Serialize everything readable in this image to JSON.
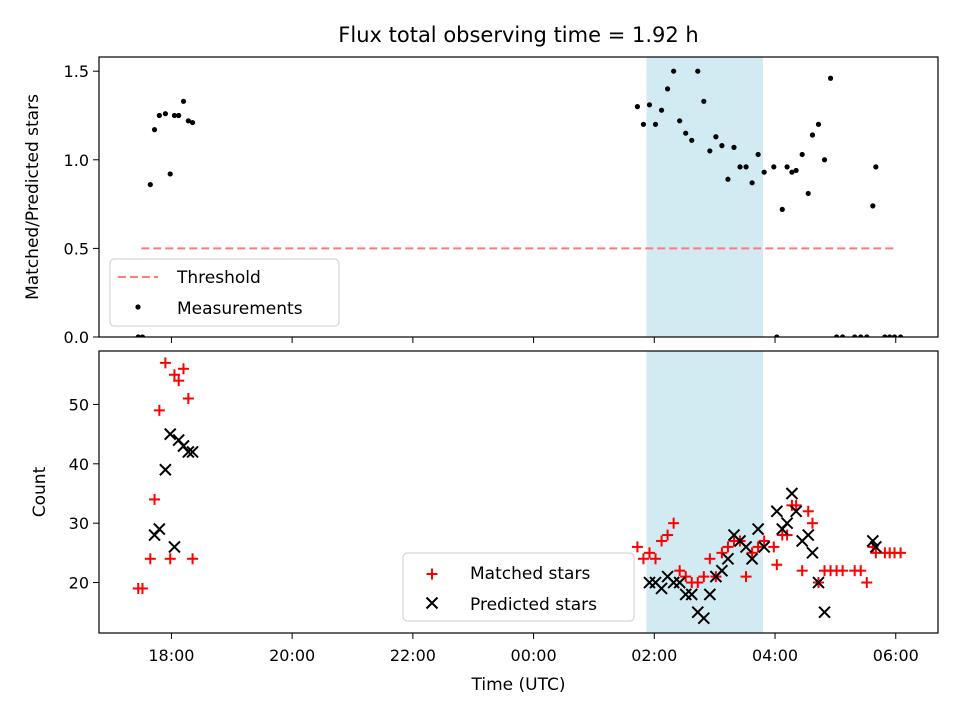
{
  "chart_data": {
    "title": "Flux total observing time = 1.92 h",
    "xlabel": "Time (UTC)",
    "x_unit": "hours since 00:00 UTC",
    "x_range": [
      -7.2,
      6.7
    ],
    "x_tick_values": [
      -6,
      -4,
      -2,
      0,
      2,
      4,
      6
    ],
    "x_tick_labels": [
      "18:00",
      "20:00",
      "22:00",
      "00:00",
      "02:00",
      "04:00",
      "06:00"
    ],
    "highlight": {
      "x_start": 1.87,
      "x_end": 3.8,
      "color": "#add8e6"
    },
    "panels": [
      {
        "type": "scatter",
        "ylabel": "Matched/Predicted stars",
        "ylim": [
          0,
          1.58
        ],
        "y_tick_values": [
          0,
          0.5,
          1.0,
          1.5
        ],
        "y_tick_labels": [
          "0.0",
          "0.5",
          "1.0",
          "1.5"
        ],
        "threshold": {
          "label": "Threshold",
          "value": 0.5,
          "x": [
            -6.5,
            6.0
          ],
          "color": "#ff7a7a"
        },
        "series": [
          {
            "name": "Measurements",
            "color": "#000000",
            "marker": "dot",
            "x": [
              -6.55,
              -6.48,
              -6.35,
              -6.28,
              -6.2,
              -6.1,
              -6.02,
              -5.95,
              -5.88,
              -5.8,
              -5.72,
              -5.65,
              1.72,
              1.82,
              1.92,
              2.02,
              2.12,
              2.22,
              2.32,
              2.42,
              2.52,
              2.62,
              2.72,
              2.82,
              2.92,
              3.02,
              3.12,
              3.22,
              3.32,
              3.42,
              3.52,
              3.62,
              3.72,
              3.82,
              3.98,
              4.03,
              4.12,
              4.2,
              4.28,
              4.35,
              4.45,
              4.55,
              4.62,
              4.72,
              4.82,
              4.92,
              5.02,
              5.12,
              5.32,
              5.42,
              5.52,
              5.62,
              5.67,
              5.82,
              5.9,
              5.98,
              6.08
            ],
            "y": [
              0.0,
              0.0,
              0.86,
              1.17,
              1.25,
              1.26,
              0.92,
              1.25,
              1.25,
              1.33,
              1.22,
              1.21,
              1.3,
              1.2,
              1.31,
              1.2,
              1.28,
              1.4,
              1.5,
              1.22,
              1.15,
              1.11,
              1.5,
              1.33,
              1.05,
              1.13,
              1.08,
              0.89,
              1.07,
              0.96,
              0.96,
              0.87,
              1.03,
              0.93,
              0.96,
              0.0,
              0.72,
              0.96,
              0.93,
              0.94,
              1.03,
              0.81,
              1.14,
              1.2,
              1.0,
              1.46,
              0.0,
              0.0,
              0.0,
              0.0,
              0.0,
              0.74,
              0.96,
              0.0,
              0.0,
              0.0,
              0.0
            ]
          }
        ]
      },
      {
        "type": "scatter",
        "ylabel": "Count",
        "ylim": [
          11.5,
          59
        ],
        "y_tick_values": [
          20,
          30,
          40,
          50
        ],
        "y_tick_labels": [
          "20",
          "30",
          "40",
          "50"
        ],
        "series": [
          {
            "name": "Matched stars",
            "color": "#ff0000",
            "marker": "plus",
            "x": [
              -6.55,
              -6.48,
              -6.35,
              -6.28,
              -6.2,
              -6.1,
              -6.02,
              -5.95,
              -5.88,
              -5.8,
              -5.72,
              -5.65,
              1.72,
              1.82,
              1.92,
              2.02,
              2.12,
              2.22,
              2.32,
              2.42,
              2.52,
              2.62,
              2.72,
              2.82,
              2.92,
              3.02,
              3.12,
              3.22,
              3.32,
              3.42,
              3.52,
              3.62,
              3.72,
              3.82,
              3.98,
              4.03,
              4.12,
              4.2,
              4.28,
              4.35,
              4.45,
              4.55,
              4.62,
              4.72,
              4.82,
              4.92,
              5.02,
              5.12,
              5.32,
              5.42,
              5.52,
              5.62,
              5.67,
              5.82,
              5.9,
              5.98,
              6.08
            ],
            "y": [
              19,
              19,
              24,
              34,
              49,
              57,
              24,
              55,
              54,
              56,
              51,
              24,
              26,
              24,
              25,
              24,
              27,
              28,
              30,
              22,
              21,
              20,
              20,
              21,
              24,
              21,
              25,
              26,
              27,
              27,
              21,
              25,
              26,
              27,
              26,
              23,
              28,
              28,
              33,
              33,
              22,
              32,
              30,
              20,
              22,
              22,
              22,
              22,
              22,
              22,
              20,
              26,
              25,
              25,
              25,
              25,
              25
            ]
          },
          {
            "name": "Predicted stars",
            "color": "#000000",
            "marker": "x",
            "x": [
              -6.28,
              -6.2,
              -6.1,
              -6.02,
              -5.95,
              -5.88,
              -5.8,
              -5.72,
              -5.65,
              1.92,
              2.02,
              2.12,
              2.22,
              2.32,
              2.42,
              2.52,
              2.62,
              2.72,
              2.82,
              2.92,
              3.02,
              3.12,
              3.22,
              3.32,
              3.42,
              3.52,
              3.62,
              3.72,
              3.82,
              4.03,
              4.12,
              4.2,
              4.28,
              4.35,
              4.45,
              4.55,
              4.62,
              4.72,
              4.82,
              5.62,
              5.67
            ],
            "y": [
              28,
              29,
              39,
              45,
              26,
              44,
              43,
              42,
              42,
              20,
              20,
              19,
              21,
              20,
              20,
              18,
              18,
              15,
              14,
              18,
              21,
              22,
              24,
              28,
              27,
              26,
              24,
              29,
              26,
              32,
              29,
              30,
              35,
              32,
              27,
              28,
              25,
              20,
              15,
              27,
              26
            ]
          }
        ]
      }
    ]
  }
}
